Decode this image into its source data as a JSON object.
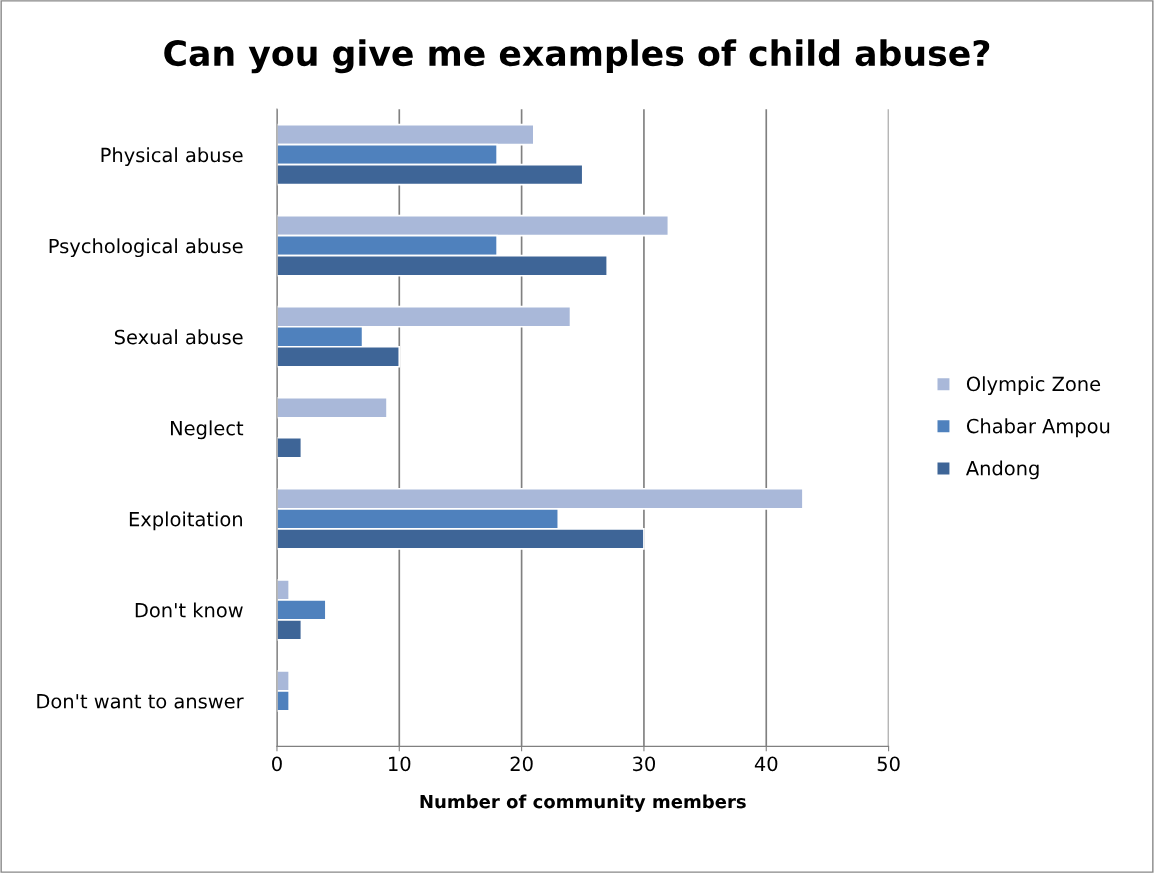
{
  "chart_data": {
    "type": "bar",
    "orientation": "horizontal",
    "title": "Can you give me examples of child abuse?",
    "xlabel": "Number of community members",
    "categories": [
      "Physical abuse",
      "Psychological abuse",
      "Sexual abuse",
      "Neglect",
      "Exploitation",
      "Don't know",
      "Don't want to answer"
    ],
    "series": [
      {
        "name": "Olympic Zone",
        "color": "#a9b8d9",
        "values": [
          21,
          32,
          24,
          9,
          43,
          1,
          1
        ]
      },
      {
        "name": "Chabar Ampou",
        "color": "#4f81bd",
        "values": [
          18,
          18,
          7,
          null,
          23,
          4,
          1
        ]
      },
      {
        "name": "Andong",
        "color": "#3e6597",
        "values": [
          25,
          27,
          10,
          2,
          30,
          2,
          null
        ]
      }
    ],
    "xlim": [
      0,
      50
    ],
    "xticks": [
      0,
      10,
      20,
      30,
      40,
      50
    ],
    "grid": "x",
    "legend": "right"
  }
}
